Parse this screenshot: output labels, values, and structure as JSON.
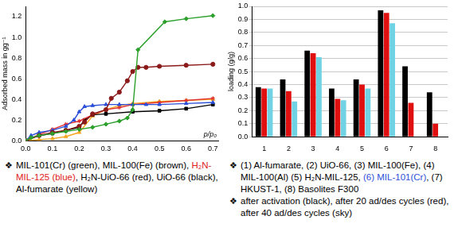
{
  "chart_data": [
    {
      "type": "line",
      "y_label": "Adsorbed mass in gg⁻¹",
      "x_label": "p/p₀",
      "xlim": [
        0,
        0.72
      ],
      "xticks": [
        {
          "value": 0,
          "label": "0.0"
        },
        0.1,
        0.2,
        0.3,
        0.4,
        0.5,
        0.6,
        0.7
      ],
      "ylim": [
        0,
        1.3
      ],
      "yticks": [
        {
          "value": 0,
          "label": "0.0"
        },
        0.2,
        0.4,
        0.6,
        0.8,
        {
          "value": 1,
          "label": "1.0"
        },
        1.2
      ],
      "grid": false,
      "series": [
        {
          "color": "#2ca02c",
          "marker": "diamond",
          "x": [
            0,
            0.02,
            0.05,
            0.1,
            0.15,
            0.2,
            0.25,
            0.3,
            0.35,
            0.38,
            0.4,
            0.42,
            0.52,
            0.6,
            0.7
          ],
          "values": [
            0,
            0.03,
            0.05,
            0.07,
            0.09,
            0.11,
            0.13,
            0.16,
            0.19,
            0.22,
            0.3,
            0.88,
            1.15,
            1.18,
            1.21
          ]
        },
        {
          "color": "#8b1a1a",
          "marker": "circle",
          "x": [
            0,
            0.05,
            0.1,
            0.15,
            0.2,
            0.22,
            0.25,
            0.3,
            0.32,
            0.35,
            0.38,
            0.4,
            0.42,
            0.45,
            0.5,
            0.6,
            0.7
          ],
          "values": [
            0,
            0.05,
            0.08,
            0.1,
            0.14,
            0.18,
            0.26,
            0.3,
            0.41,
            0.47,
            0.58,
            0.67,
            0.71,
            0.71,
            0.72,
            0.73,
            0.74
          ]
        },
        {
          "color": "#2b4fd8",
          "marker": "triangle",
          "x": [
            0,
            0.02,
            0.05,
            0.1,
            0.15,
            0.18,
            0.2,
            0.22,
            0.25,
            0.3,
            0.35,
            0.4,
            0.45,
            0.5,
            0.6,
            0.7
          ],
          "values": [
            0,
            0.05,
            0.08,
            0.1,
            0.14,
            0.2,
            0.28,
            0.33,
            0.34,
            0.35,
            0.35,
            0.35,
            0.35,
            0.35,
            0.36,
            0.37
          ]
        },
        {
          "color": "#e03030",
          "marker": "star",
          "x": [
            0,
            0.05,
            0.1,
            0.15,
            0.2,
            0.25,
            0.3,
            0.35,
            0.4,
            0.5,
            0.6,
            0.7
          ],
          "values": [
            0,
            0.06,
            0.11,
            0.16,
            0.19,
            0.25,
            0.3,
            0.32,
            0.35,
            0.37,
            0.39,
            0.41
          ]
        },
        {
          "color": "#000000",
          "marker": "square",
          "x": [
            0,
            0.05,
            0.1,
            0.15,
            0.2,
            0.22,
            0.25,
            0.3,
            0.4,
            0.5,
            0.6,
            0.7
          ],
          "values": [
            0,
            0.05,
            0.07,
            0.1,
            0.13,
            0.2,
            0.25,
            0.26,
            0.28,
            0.29,
            0.31,
            0.35
          ]
        },
        {
          "color": "#f5a623",
          "marker": "triangle",
          "x": [
            0,
            0.05,
            0.1,
            0.15,
            0.2,
            0.25,
            0.3,
            0.35,
            0.4,
            0.5,
            0.6,
            0.7
          ],
          "values": [
            0,
            0.01,
            0.02,
            0.04,
            0.08,
            0.24,
            0.3,
            0.34,
            0.36,
            0.38,
            0.39,
            0.4
          ]
        }
      ],
      "caption": [
        {
          "bullet": "❖",
          "runs": [
            {
              "text": "MIL-101(Cr) (green), MIL-100(Fe) (brown), ",
              "color": "#000000"
            },
            {
              "text": "H₂N-MIL-125 (blue)",
              "color": "#e02020"
            },
            {
              "text": ", H₂N-UiO-66 (red), UiO-66 (black), Al-fumarate (yellow)",
              "color": "#000000"
            }
          ]
        }
      ]
    },
    {
      "type": "bar",
      "y_label": "loading (g/g)",
      "categories": [
        "1",
        "2",
        "3",
        "4",
        "5",
        "6",
        "7",
        "8"
      ],
      "ylim": [
        0,
        1
      ],
      "yticks": [
        {
          "value": 0,
          "label": "0.0"
        },
        0.1,
        0.2,
        0.3,
        0.4,
        0.5,
        0.6,
        0.7,
        0.8,
        0.9,
        {
          "value": 1,
          "label": "1.0"
        }
      ],
      "grid": true,
      "series": [
        {
          "color": "#000000",
          "values": [
            0.38,
            0.44,
            0.66,
            0.37,
            0.44,
            0.97,
            0.54,
            0.34
          ]
        },
        {
          "color": "#e01010",
          "values": [
            0.37,
            0.35,
            0.64,
            0.29,
            0.4,
            0.95,
            0.26,
            0.1
          ]
        },
        {
          "color": "#6fd3e3",
          "values": [
            0.37,
            0.27,
            0.61,
            0.28,
            0.37,
            0.87,
            null,
            null
          ]
        }
      ],
      "caption": [
        {
          "bullet": "❖",
          "runs": [
            {
              "text": "(1) Al-fumarate, (2) UiO-66, (3) MIL-100(Fe), (4) MIL-100(Al) (5) H₂N-MIL-125, ",
              "color": "#000000"
            },
            {
              "text": "(6) MIL-101(Cr)",
              "color": "#2b4fd8"
            },
            {
              "text": ", (7) HKUST-1, (8) Basolites F300",
              "color": "#000000"
            }
          ]
        },
        {
          "bullet": "❖",
          "runs": [
            {
              "text": "after activation (black), after 20 ad/des cycles (red), after 40 ad/des cycles (sky)",
              "color": "#000000"
            }
          ]
        }
      ]
    }
  ]
}
